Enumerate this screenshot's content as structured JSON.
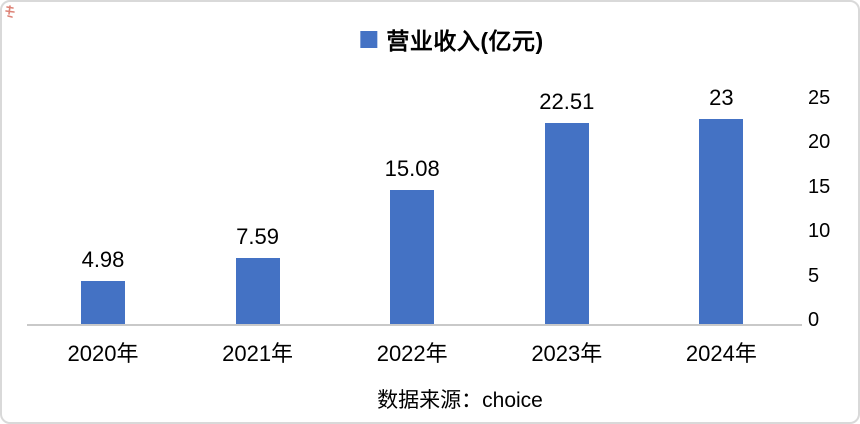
{
  "legend": {
    "label": "营业收入(亿元)",
    "marker_color": "#4472c4"
  },
  "chart_data": {
    "type": "bar",
    "title": "",
    "series_name": "营业收入(亿元)",
    "categories": [
      "2020年",
      "2021年",
      "2022年",
      "2023年",
      "2024年"
    ],
    "values": [
      4.98,
      7.59,
      15.08,
      22.51,
      23
    ],
    "data_labels": [
      "4.98",
      "7.59",
      "15.08",
      "22.51",
      "23"
    ],
    "xlabel": "",
    "ylabel": "",
    "ylim": [
      0,
      25
    ],
    "yticks": [
      0,
      5,
      10,
      15,
      20,
      25
    ],
    "ytick_side": "right",
    "grid": false,
    "bar_color": "#4472c4",
    "legend_position": "top-center"
  },
  "source": {
    "text": "数据来源：choice"
  }
}
